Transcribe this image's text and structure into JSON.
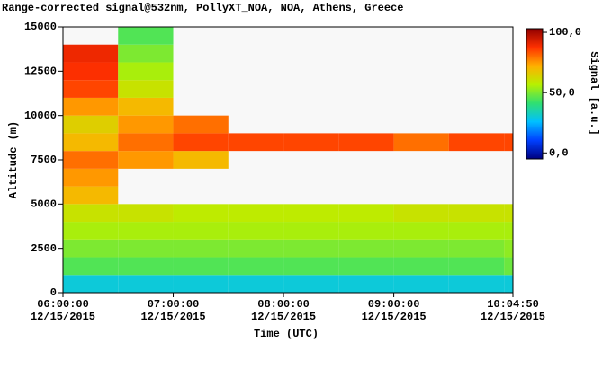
{
  "chart_data": {
    "type": "heatmap",
    "title": "Range-corrected signal@532nm, PollyXT_NOA, NOA, Athens, Greece",
    "x_label": "Time (UTC)",
    "y_label": "Altitude (m)",
    "colorbar_label": "Signal [a.u.]",
    "date": "12/15/2015",
    "xlim": [
      "06:00:00",
      "10:04:50"
    ],
    "xticks": [
      "06:00:00",
      "07:00:00",
      "08:00:00",
      "09:00:00",
      "10:04:50"
    ],
    "ylim": [
      0,
      15000
    ],
    "yticks": [
      0,
      2500,
      5000,
      7500,
      10000,
      12500,
      15000
    ],
    "clim": [
      -5,
      103
    ],
    "cticks": [
      {
        "value": 0,
        "label": "0,0"
      },
      {
        "value": 50,
        "label": "50,0"
      },
      {
        "value": 100,
        "label": "100,0"
      }
    ],
    "colormap": [
      "#000080",
      "#0040ff",
      "#00c0ff",
      "#30e070",
      "#b8f000",
      "#ffb000",
      "#ff3000",
      "#900000"
    ],
    "x": [
      "06:00:00",
      "06:30:00",
      "07:00:00",
      "07:30:00",
      "08:00:00",
      "08:30:00",
      "09:00:00",
      "09:30:00",
      "10:00:00"
    ],
    "y": [
      0,
      1000,
      2000,
      3000,
      4000,
      5000,
      6000,
      7000,
      8000,
      9000,
      10000,
      11000,
      12000,
      13000,
      14000
    ],
    "values": [
      [
        30,
        30,
        30,
        30,
        30,
        30,
        30,
        30,
        30
      ],
      [
        45,
        45,
        45,
        45,
        45,
        45,
        45,
        45,
        48
      ],
      [
        50,
        50,
        50,
        50,
        50,
        50,
        50,
        50,
        52
      ],
      [
        55,
        55,
        55,
        55,
        55,
        55,
        55,
        55,
        55
      ],
      [
        60,
        60,
        58,
        58,
        58,
        58,
        60,
        60,
        60
      ],
      [
        70,
        null,
        null,
        null,
        null,
        null,
        null,
        null,
        null
      ],
      [
        75,
        null,
        null,
        null,
        null,
        null,
        null,
        null,
        null
      ],
      [
        80,
        75,
        70,
        null,
        null,
        null,
        null,
        null,
        null
      ],
      [
        70,
        80,
        85,
        85,
        85,
        85,
        80,
        85,
        85
      ],
      [
        65,
        75,
        80,
        null,
        null,
        null,
        null,
        null,
        null
      ],
      [
        75,
        70,
        null,
        null,
        null,
        null,
        null,
        null,
        null
      ],
      [
        85,
        60,
        null,
        null,
        null,
        null,
        null,
        null,
        null
      ],
      [
        88,
        55,
        null,
        null,
        null,
        null,
        null,
        null,
        null
      ],
      [
        90,
        50,
        null,
        null,
        null,
        null,
        null,
        null,
        null
      ],
      [
        null,
        45,
        null,
        null,
        null,
        null,
        null,
        null,
        null
      ]
    ]
  }
}
